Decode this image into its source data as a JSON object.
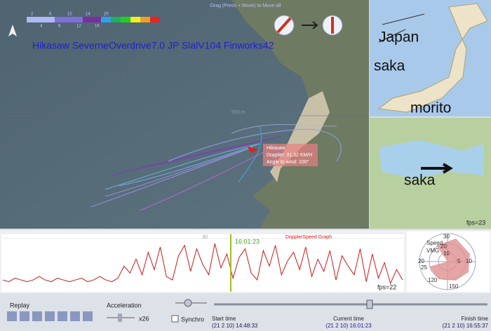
{
  "map": {
    "hint": "Drag (Press + Move) to Move all",
    "overlay_title": "Hikasaw SeverneOverdrive7.0  JP SlalV104  Finworks42",
    "legend_top": [
      2,
      6,
      10,
      14,
      20
    ],
    "legend_bottom": [
      4,
      8,
      12,
      16
    ],
    "scale_label": "500 m",
    "popup": {
      "name": "Hikasaw",
      "doppler": "Doppler: 31.32 KM/H",
      "angle": "Angle to wind: 100°"
    }
  },
  "inset": {
    "labels": [
      "Japan",
      "saka",
      "morito",
      "saka"
    ],
    "fps": "fps=23"
  },
  "speed_graph": {
    "title": "DopplerSpeed Graph",
    "cursor_time": "16:01:23",
    "fps": "fps=22",
    "ylim": [
      0,
      30
    ],
    "yticks": [
      30
    ],
    "values": [
      6,
      5,
      7,
      6,
      5,
      6,
      8,
      6,
      5,
      7,
      6,
      5,
      6,
      7,
      5,
      6,
      8,
      6,
      5,
      7,
      14,
      10,
      18,
      9,
      22,
      12,
      25,
      8,
      6,
      20,
      26,
      11,
      24,
      15,
      9,
      27,
      13,
      21,
      7,
      19,
      24,
      10,
      6,
      23,
      14,
      26,
      9,
      17,
      22,
      12,
      25,
      8,
      18,
      11,
      23,
      6,
      20,
      14,
      9,
      24,
      5,
      21,
      7,
      16,
      4,
      12,
      6
    ]
  },
  "polar": {
    "labels": [
      "30",
      "20",
      "10",
      "Speed",
      "VMG",
      "5",
      "10",
      "20",
      "25",
      "150",
      "120"
    ]
  },
  "controls": {
    "replay": "Replay",
    "acceleration": "Acceleration",
    "speed_factor": "x26",
    "synchro": "Synchro",
    "start_label": "Start time",
    "start_time": "(21 2 10) 14:48:33",
    "current_label": "Current time",
    "current_time": "(21 2 10) 16:01:23",
    "finish_label": "Finish time",
    "finish_time": "(21 2 10) 16:55:37"
  }
}
